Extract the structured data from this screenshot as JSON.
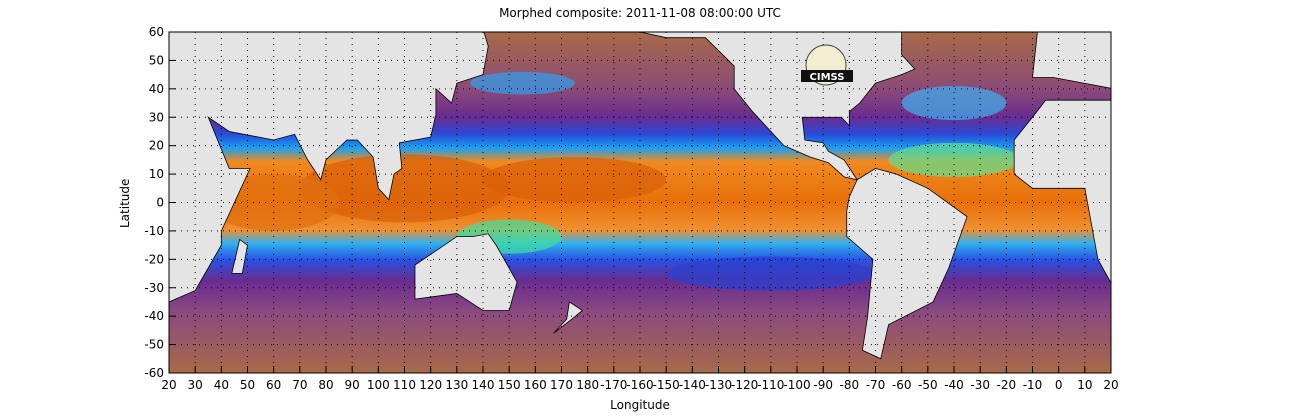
{
  "title": "Morphed composite: 2011-11-08 08:00:00 UTC",
  "xlabel": "Longitude",
  "ylabel": "Latitude",
  "logo_text": "CIMSS",
  "x_ticks": [
    "20",
    "30",
    "40",
    "50",
    "60",
    "70",
    "80",
    "90",
    "100",
    "110",
    "120",
    "130",
    "140",
    "150",
    "160",
    "170",
    "180",
    "-170",
    "-160",
    "-150",
    "-140",
    "-130",
    "-120",
    "-110",
    "-100",
    "-90",
    "-80",
    "-70",
    "-60",
    "-50",
    "-40",
    "-30",
    "-20",
    "-10",
    "0",
    "10",
    "20"
  ],
  "y_ticks": [
    "60",
    "50",
    "40",
    "30",
    "20",
    "10",
    "0",
    "-10",
    "-20",
    "-30",
    "-40",
    "-50",
    "-60"
  ],
  "colors": {
    "land": "#e4e4e4",
    "dry": "#a8704a",
    "mid": "#7a3a8c",
    "moist": "#2a7ef0",
    "wet": "#e8700a"
  }
}
